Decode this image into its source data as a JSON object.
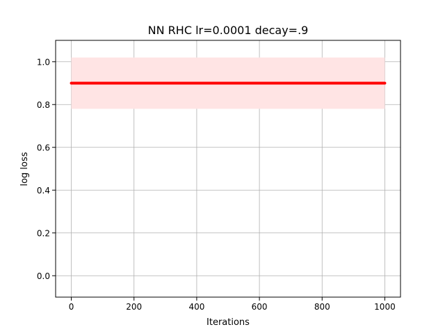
{
  "chart_data": {
    "type": "line",
    "title": "NN RHC lr=0.0001 decay=.9",
    "xlabel": "Iterations",
    "ylabel": "log loss",
    "xlim": [
      -50,
      1050
    ],
    "ylim": [
      -0.1,
      1.1
    ],
    "xticks": [
      0,
      200,
      400,
      600,
      800,
      1000
    ],
    "yticks": [
      0.0,
      0.2,
      0.4,
      0.6,
      0.8,
      1.0
    ],
    "xtick_labels": [
      "0",
      "200",
      "400",
      "600",
      "800",
      "1000"
    ],
    "ytick_labels": [
      "0.0",
      "0.2",
      "0.4",
      "0.6",
      "0.8",
      "1.0"
    ],
    "grid": true,
    "series": [
      {
        "x": [
          0,
          1000
        ],
        "y": [
          0.9,
          0.9
        ],
        "band_lower": [
          0.78,
          0.78
        ],
        "band_upper": [
          1.02,
          1.02
        ],
        "color": "#ff0000",
        "band_color": "#ffe4e4"
      }
    ]
  }
}
